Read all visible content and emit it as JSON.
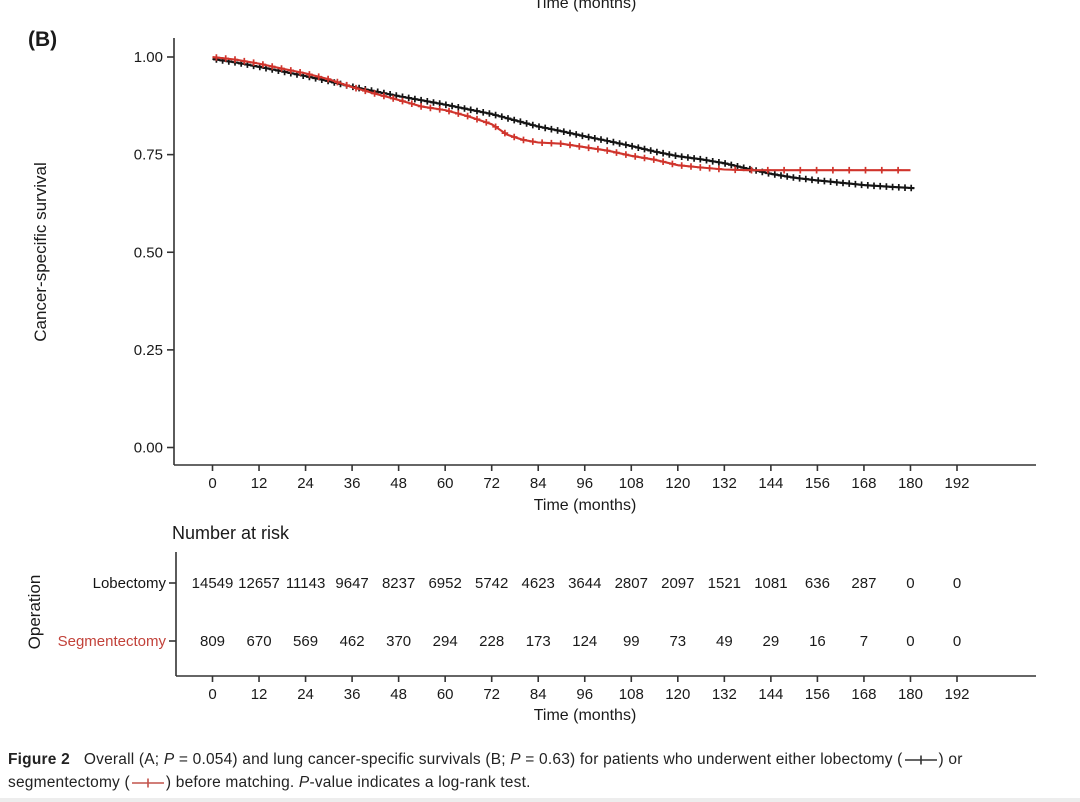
{
  "page": {
    "panel_label": "(B)",
    "top_clipped_label": "Time (months)"
  },
  "colors": {
    "lobectomy": "#141414",
    "segmentectomy": "#d0342c",
    "segmentectomy_label": "#c2423a",
    "axis": "#333333",
    "text": "#1a1a1a"
  },
  "chart_data": {
    "type": "line",
    "subtype": "kaplan-meier-step",
    "title": "",
    "xlabel": "Time (months)",
    "ylabel": "Cancer-specific survival",
    "xlim": [
      0,
      192
    ],
    "ylim": [
      0.0,
      1.0
    ],
    "grid": false,
    "legend_position": "none",
    "x_ticks": [
      0,
      12,
      24,
      36,
      48,
      60,
      72,
      84,
      96,
      108,
      120,
      132,
      144,
      156,
      168,
      180,
      192
    ],
    "y_ticks": [
      "0.00",
      "0.25",
      "0.50",
      "0.75",
      "1.00"
    ],
    "y_tick_values": [
      0,
      0.25,
      0.5,
      0.75,
      1
    ],
    "series": [
      {
        "name": "Lobectomy",
        "color": "#141414",
        "censor_marks": true,
        "censor_interval": 1.6,
        "censor_interval_late": 1.6,
        "late_start": 200,
        "end_time": 181,
        "points": [
          [
            0,
            0.995
          ],
          [
            6,
            0.986
          ],
          [
            12,
            0.975
          ],
          [
            18,
            0.963
          ],
          [
            24,
            0.951
          ],
          [
            30,
            0.938
          ],
          [
            36,
            0.924
          ],
          [
            42,
            0.912
          ],
          [
            48,
            0.9
          ],
          [
            54,
            0.889
          ],
          [
            60,
            0.878
          ],
          [
            66,
            0.866
          ],
          [
            72,
            0.854
          ],
          [
            78,
            0.838
          ],
          [
            84,
            0.822
          ],
          [
            90,
            0.81
          ],
          [
            96,
            0.797
          ],
          [
            102,
            0.785
          ],
          [
            108,
            0.772
          ],
          [
            114,
            0.758
          ],
          [
            120,
            0.746
          ],
          [
            126,
            0.738
          ],
          [
            132,
            0.728
          ],
          [
            138,
            0.714
          ],
          [
            144,
            0.701
          ],
          [
            150,
            0.691
          ],
          [
            156,
            0.684
          ],
          [
            162,
            0.678
          ],
          [
            168,
            0.672
          ],
          [
            174,
            0.668
          ],
          [
            181,
            0.664
          ]
        ]
      },
      {
        "name": "Segmentectomy",
        "color": "#d0342c",
        "censor_marks": true,
        "censor_interval": 2.4,
        "censor_interval_late": 4.2,
        "late_start": 130,
        "end_time": 180,
        "points": [
          [
            0,
            1.0
          ],
          [
            6,
            0.993
          ],
          [
            12,
            0.983
          ],
          [
            18,
            0.97
          ],
          [
            24,
            0.958
          ],
          [
            30,
            0.943
          ],
          [
            36,
            0.923
          ],
          [
            42,
            0.906
          ],
          [
            48,
            0.89
          ],
          [
            54,
            0.873
          ],
          [
            60,
            0.864
          ],
          [
            66,
            0.848
          ],
          [
            72,
            0.828
          ],
          [
            76,
            0.801
          ],
          [
            80,
            0.788
          ],
          [
            84,
            0.781
          ],
          [
            90,
            0.778
          ],
          [
            96,
            0.769
          ],
          [
            102,
            0.76
          ],
          [
            108,
            0.747
          ],
          [
            114,
            0.737
          ],
          [
            120,
            0.723
          ],
          [
            126,
            0.717
          ],
          [
            132,
            0.712
          ],
          [
            138,
            0.71
          ],
          [
            180,
            0.71
          ]
        ]
      }
    ],
    "risk_table": {
      "title": "Number at risk",
      "group_axis_label": "Operation",
      "xlabel": "Time (months)",
      "time_ticks": [
        0,
        12,
        24,
        36,
        48,
        60,
        72,
        84,
        96,
        108,
        120,
        132,
        144,
        156,
        168,
        180,
        192
      ],
      "rows": [
        {
          "label": "Lobectomy",
          "color": "#141414",
          "values": [
            14549,
            12657,
            11143,
            9647,
            8237,
            6952,
            5742,
            4623,
            3644,
            2807,
            2097,
            1521,
            1081,
            636,
            287,
            0,
            0
          ]
        },
        {
          "label": "Segmentectomy",
          "color": "#c2423a",
          "values": [
            809,
            670,
            569,
            462,
            370,
            294,
            228,
            173,
            124,
            99,
            73,
            49,
            29,
            16,
            7,
            0,
            0
          ]
        }
      ]
    }
  },
  "caption": {
    "figure_label": "Figure 2",
    "line1_part1": "Overall (A; ",
    "line1_p1": "P",
    "line1_part2": " = 0.054) and lung cancer-specific survivals (B; ",
    "line1_p2": "P",
    "line1_part3": " = 0.63) for patients who underwent either lobectomy (",
    "line1_part4": ") or",
    "line2_part1": "segmentectomy (",
    "line2_part2": ") before matching. ",
    "line2_p": "P",
    "line2_part3": "-value indicates a log-rank test."
  }
}
